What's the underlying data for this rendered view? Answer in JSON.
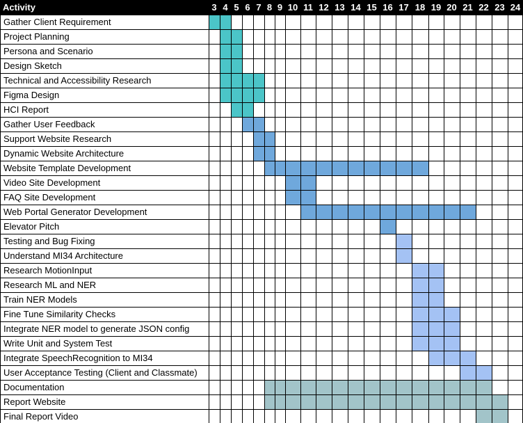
{
  "chart_data": {
    "type": "gantt",
    "header": {
      "activity_label": "Activity"
    },
    "weeks": [
      3,
      4,
      5,
      6,
      7,
      8,
      9,
      10,
      11,
      12,
      13,
      14,
      15,
      16,
      17,
      18,
      19,
      20,
      21,
      22,
      23,
      24
    ],
    "colors": {
      "header_bg": "#000000",
      "header_text": "#ffffff",
      "grid": "#000000",
      "teal": "#4bc5c8",
      "blue": "#6fa8dc",
      "lightblue": "#a4c2f4",
      "grayteal": "#a2c4c9"
    },
    "tasks": [
      {
        "name": "Gather Client Requirement",
        "start": 3,
        "end": 4,
        "color": "teal"
      },
      {
        "name": "Project Planning",
        "start": 4,
        "end": 5,
        "color": "teal"
      },
      {
        "name": "Persona and Scenario",
        "start": 4,
        "end": 5,
        "color": "teal"
      },
      {
        "name": "Design Sketch",
        "start": 4,
        "end": 5,
        "color": "teal"
      },
      {
        "name": "Technical and Accessibility Research",
        "start": 4,
        "end": 7,
        "color": "teal"
      },
      {
        "name": "Figma Design",
        "start": 4,
        "end": 7,
        "color": "teal"
      },
      {
        "name": "HCI Report",
        "start": 5,
        "end": 6,
        "color": "teal"
      },
      {
        "name": "Gather User Feedback",
        "start": 6,
        "end": 7,
        "color": "blue"
      },
      {
        "name": "Support Website Research",
        "start": 7,
        "end": 8,
        "color": "blue"
      },
      {
        "name": "Dynamic Website Architecture",
        "start": 7,
        "end": 8,
        "color": "blue"
      },
      {
        "name": "Website Template Development",
        "start": 8,
        "end": 18,
        "color": "blue"
      },
      {
        "name": "Video Site Development",
        "start": 10,
        "end": 11,
        "color": "blue"
      },
      {
        "name": "FAQ Site Development",
        "start": 10,
        "end": 11,
        "color": "blue"
      },
      {
        "name": "Web Portal Generator Development",
        "start": 11,
        "end": 21,
        "color": "blue"
      },
      {
        "name": "Elevator Pitch",
        "start": 16,
        "end": 16,
        "color": "blue"
      },
      {
        "name": "Testing and Bug Fixing",
        "start": 17,
        "end": 17,
        "color": "lightblue"
      },
      {
        "name": "Understand MI34 Architecture",
        "start": 17,
        "end": 17,
        "color": "lightblue"
      },
      {
        "name": "Research MotionInput",
        "start": 18,
        "end": 19,
        "color": "lightblue"
      },
      {
        "name": "Research ML and NER",
        "start": 18,
        "end": 19,
        "color": "lightblue"
      },
      {
        "name": "Train NER Models",
        "start": 18,
        "end": 19,
        "color": "lightblue"
      },
      {
        "name": "Fine Tune Similarity Checks",
        "start": 18,
        "end": 20,
        "color": "lightblue"
      },
      {
        "name": "Integrate NER model to generate JSON config",
        "start": 18,
        "end": 20,
        "color": "lightblue"
      },
      {
        "name": "Write Unit and System Test",
        "start": 18,
        "end": 20,
        "color": "lightblue"
      },
      {
        "name": "Integrate SpeechRecognition to MI34",
        "start": 19,
        "end": 21,
        "color": "lightblue"
      },
      {
        "name": "User Acceptance Testing (Client and Classmate)",
        "start": 21,
        "end": 22,
        "color": "lightblue"
      },
      {
        "name": "Documentation",
        "start": 8,
        "end": 22,
        "color": "grayteal"
      },
      {
        "name": "Report Website",
        "start": 8,
        "end": 23,
        "color": "grayteal"
      },
      {
        "name": "Final Report Video",
        "start": 22,
        "end": 23,
        "color": "grayteal"
      }
    ]
  }
}
